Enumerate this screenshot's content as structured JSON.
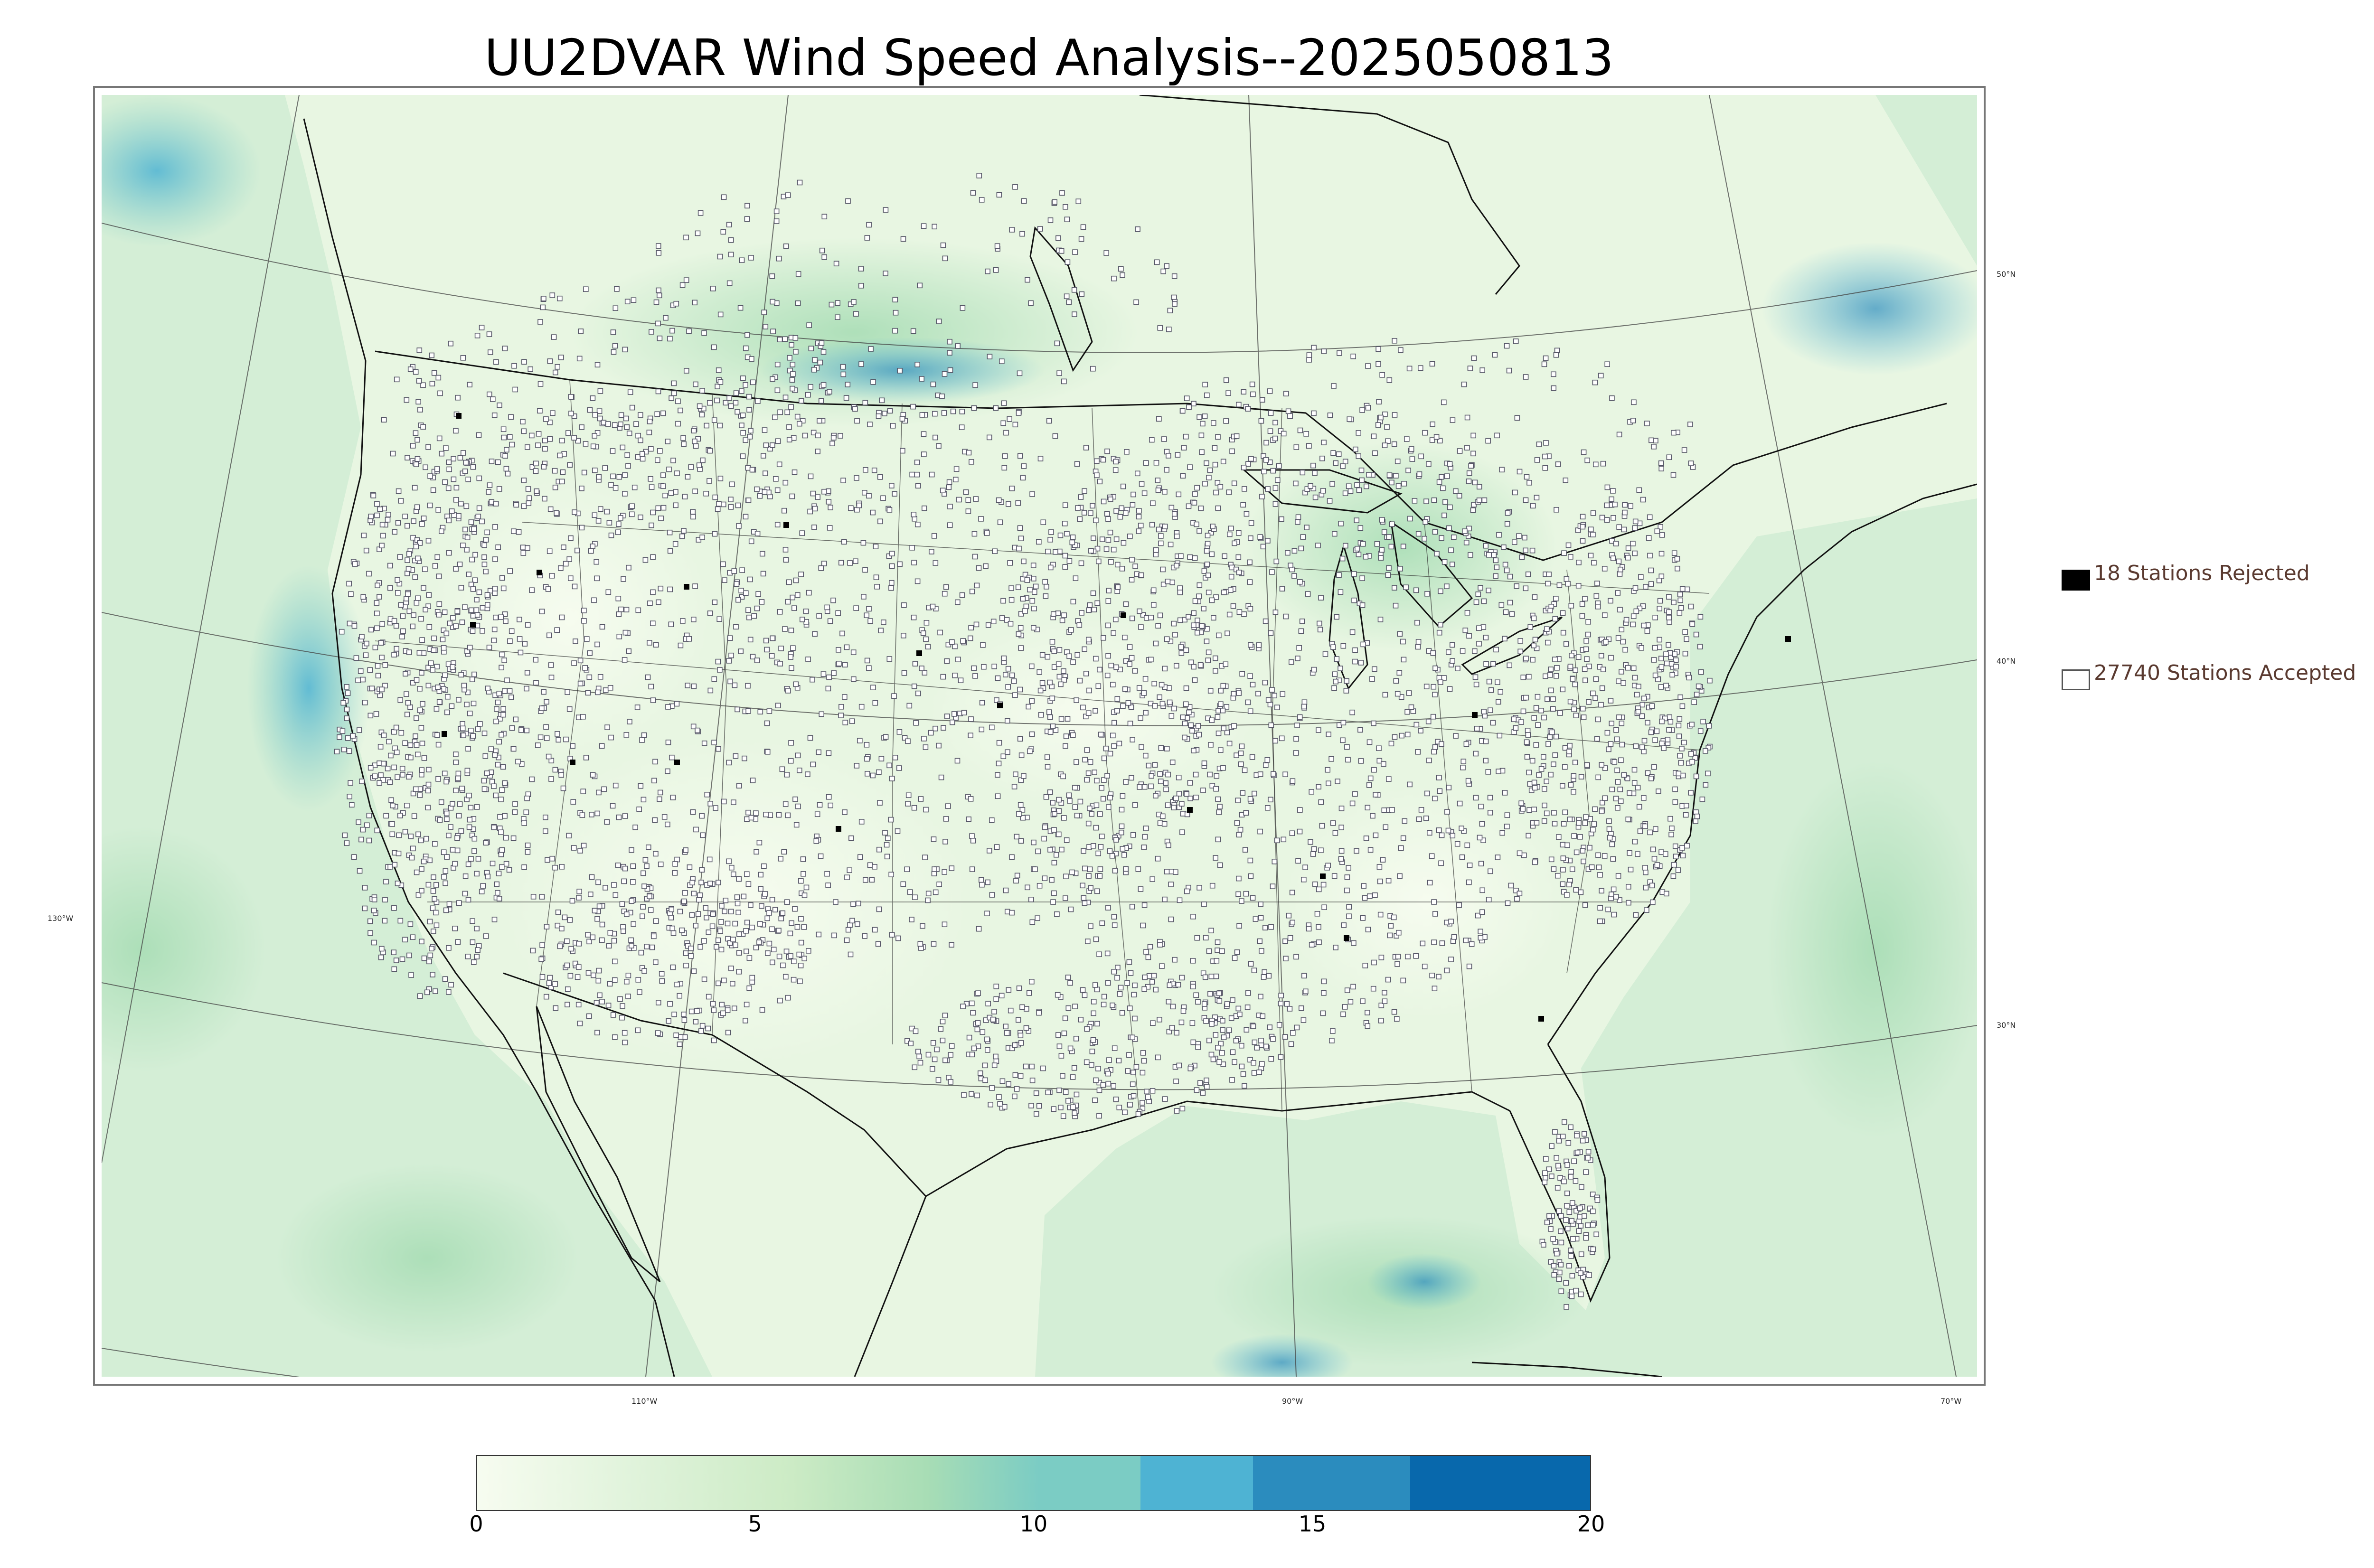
{
  "title": "UU2DVAR Wind Speed Analysis--2025050813",
  "legend": {
    "rejected_label": "18 Stations Rejected",
    "accepted_label": "27740 Stations Accepted",
    "rejected_color": "#000000",
    "accepted_color": "#ffffff"
  },
  "longitude_labels": [
    "130°W",
    "110°W",
    "90°W",
    "70°W"
  ],
  "latitude_labels": [
    "50°N",
    "40°N",
    "30°N"
  ],
  "colorbar": {
    "min": 0,
    "max": 20,
    "tick_labels": [
      "0",
      "5",
      "10",
      "15",
      "20"
    ],
    "colors": [
      "#f7fcf0",
      "#e0f3db",
      "#ccebc5",
      "#a8ddb5",
      "#7bccc4",
      "#4eb3d3",
      "#2b8cbe",
      "#0868ac"
    ]
  },
  "map_colors": {
    "land_base": "#e6f5df",
    "ocean_base": "#c9ead0",
    "border": "#000000",
    "station_fill": "#ffffff",
    "station_edge": "#555566"
  }
}
